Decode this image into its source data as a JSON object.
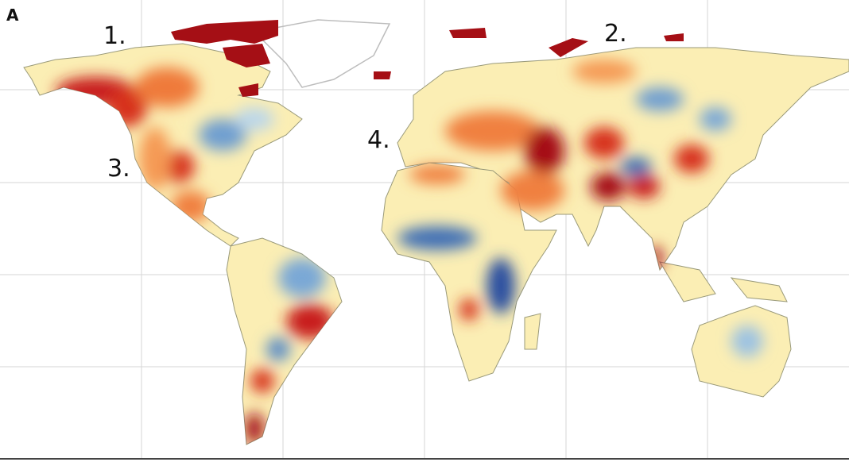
{
  "panel_label": "A",
  "annotations": [
    "1.",
    "2.",
    "3.",
    "4."
  ]
}
